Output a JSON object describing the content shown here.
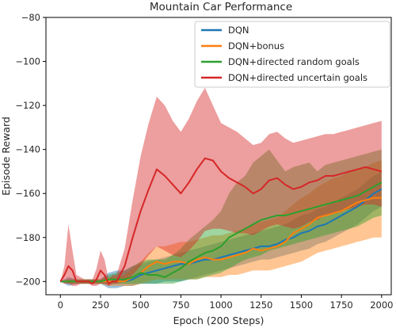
{
  "chart_data": {
    "type": "line",
    "title": "Mountain Car Performance",
    "xlabel": "Epoch (200 Steps)",
    "ylabel": "Episode Reward",
    "xlim": [
      -90,
      2060
    ],
    "ylim": [
      -206,
      -80
    ],
    "xticks": [
      0,
      250,
      500,
      750,
      1000,
      1250,
      1500,
      1750,
      2000
    ],
    "yticks": [
      -80,
      -100,
      -120,
      -140,
      -160,
      -180,
      -200
    ],
    "grid": false,
    "legend_position": "top-right",
    "series": [
      {
        "name": "DQN",
        "color": "#1f77b4",
        "x": [
          0,
          50,
          100,
          150,
          200,
          250,
          300,
          350,
          400,
          450,
          500,
          550,
          600,
          650,
          700,
          750,
          800,
          850,
          900,
          950,
          1000,
          1050,
          1100,
          1150,
          1200,
          1250,
          1300,
          1350,
          1400,
          1450,
          1500,
          1550,
          1600,
          1650,
          1700,
          1750,
          1800,
          1850,
          1900,
          1950,
          2000
        ],
        "mean": [
          -200,
          -200,
          -200,
          -200,
          -200,
          -200,
          -200,
          -200,
          -200,
          -199,
          -197,
          -196,
          -195,
          -194,
          -193,
          -192,
          -192,
          -191,
          -190,
          -190,
          -189,
          -188,
          -187,
          -186,
          -185,
          -184,
          -184,
          -183,
          -181,
          -180,
          -178,
          -177,
          -175,
          -174,
          -172,
          -170,
          -168,
          -166,
          -163,
          -160,
          -158
        ],
        "lower": [
          -200,
          -202,
          -201,
          -201,
          -201,
          -201,
          -203,
          -203,
          -202,
          -202,
          -201,
          -201,
          -201,
          -200,
          -200,
          -200,
          -199,
          -198,
          -197,
          -196,
          -195,
          -194,
          -193,
          -192,
          -191,
          -190,
          -190,
          -189,
          -188,
          -187,
          -186,
          -185,
          -183,
          -182,
          -180,
          -178,
          -176,
          -174,
          -171,
          -168,
          -166
        ],
        "upper": [
          -200,
          -198,
          -199,
          -199,
          -199,
          -199,
          -196,
          -195,
          -195,
          -193,
          -192,
          -191,
          -190,
          -189,
          -188,
          -187,
          -186,
          -185,
          -184,
          -183,
          -182,
          -181,
          -180,
          -179,
          -178,
          -177,
          -176,
          -175,
          -174,
          -172,
          -170,
          -169,
          -167,
          -166,
          -164,
          -162,
          -160,
          -158,
          -155,
          -152,
          -150
        ]
      },
      {
        "name": "DQN+bonus",
        "color": "#ff7f0e",
        "x": [
          0,
          50,
          100,
          150,
          200,
          250,
          300,
          350,
          400,
          450,
          500,
          550,
          600,
          650,
          700,
          750,
          800,
          850,
          900,
          950,
          1000,
          1050,
          1100,
          1150,
          1200,
          1250,
          1300,
          1350,
          1400,
          1450,
          1500,
          1550,
          1600,
          1650,
          1700,
          1750,
          1800,
          1850,
          1900,
          1950,
          2000
        ],
        "mean": [
          -200,
          -200,
          -200,
          -200,
          -200,
          -200,
          -200,
          -200,
          -200,
          -198,
          -196,
          -193,
          -191,
          -192,
          -191,
          -191,
          -192,
          -190,
          -189,
          -190,
          -190,
          -189,
          -188,
          -187,
          -185,
          -186,
          -185,
          -184,
          -182,
          -178,
          -176,
          -174,
          -171,
          -170,
          -169,
          -168,
          -166,
          -164,
          -163,
          -162,
          -162
        ],
        "lower": [
          -200,
          -201,
          -201,
          -201,
          -201,
          -201,
          -202,
          -202,
          -202,
          -202,
          -201,
          -200,
          -199,
          -199,
          -199,
          -199,
          -199,
          -199,
          -198,
          -198,
          -198,
          -197,
          -197,
          -196,
          -195,
          -195,
          -195,
          -194,
          -193,
          -192,
          -191,
          -189,
          -187,
          -186,
          -185,
          -184,
          -183,
          -182,
          -181,
          -180,
          -180
        ],
        "upper": [
          -200,
          -199,
          -199,
          -199,
          -199,
          -199,
          -198,
          -198,
          -197,
          -194,
          -191,
          -187,
          -184,
          -184,
          -183,
          -182,
          -182,
          -181,
          -180,
          -179,
          -179,
          -178,
          -177,
          -176,
          -174,
          -173,
          -172,
          -171,
          -168,
          -165,
          -162,
          -160,
          -157,
          -155,
          -153,
          -152,
          -150,
          -149,
          -148,
          -146,
          -145
        ]
      },
      {
        "name": "DQN+directed random goals",
        "color": "#2ca02c",
        "x": [
          0,
          50,
          100,
          150,
          200,
          250,
          300,
          350,
          400,
          450,
          500,
          550,
          600,
          650,
          700,
          750,
          800,
          850,
          900,
          950,
          1000,
          1050,
          1100,
          1150,
          1200,
          1250,
          1300,
          1350,
          1400,
          1450,
          1500,
          1550,
          1600,
          1650,
          1700,
          1750,
          1800,
          1850,
          1900,
          1950,
          2000
        ],
        "mean": [
          -200,
          -200,
          -200,
          -200,
          -200,
          -200,
          -199,
          -199,
          -199,
          -198,
          -196,
          -197,
          -197,
          -198,
          -196,
          -194,
          -191,
          -189,
          -187,
          -186,
          -184,
          -180,
          -178,
          -176,
          -174,
          -172,
          -171,
          -170,
          -170,
          -169,
          -168,
          -167,
          -166,
          -165,
          -164,
          -163,
          -162,
          -161,
          -159,
          -157,
          -155
        ],
        "lower": [
          -200,
          -201,
          -201,
          -201,
          -201,
          -201,
          -201,
          -201,
          -201,
          -201,
          -201,
          -201,
          -201,
          -201,
          -201,
          -200,
          -199,
          -199,
          -198,
          -197,
          -196,
          -194,
          -192,
          -190,
          -189,
          -188,
          -186,
          -185,
          -184,
          -183,
          -182,
          -181,
          -180,
          -179,
          -178,
          -177,
          -176,
          -175,
          -173,
          -171,
          -170
        ],
        "upper": [
          -200,
          -199,
          -199,
          -199,
          -199,
          -199,
          -197,
          -196,
          -195,
          -193,
          -191,
          -190,
          -190,
          -190,
          -188,
          -185,
          -181,
          -178,
          -175,
          -172,
          -168,
          -160,
          -155,
          -152,
          -146,
          -143,
          -140,
          -145,
          -150,
          -148,
          -147,
          -146,
          -150,
          -147,
          -146,
          -145,
          -144,
          -143,
          -142,
          -141,
          -140
        ]
      },
      {
        "name": "DQN+directed uncertain goals",
        "color": "#d62728",
        "x": [
          0,
          25,
          50,
          75,
          100,
          125,
          150,
          175,
          200,
          225,
          250,
          275,
          300,
          325,
          350,
          400,
          450,
          500,
          550,
          600,
          650,
          700,
          750,
          800,
          850,
          900,
          950,
          1000,
          1050,
          1100,
          1150,
          1200,
          1250,
          1300,
          1350,
          1400,
          1450,
          1500,
          1550,
          1600,
          1650,
          1700,
          1750,
          1800,
          1850,
          1900,
          1950,
          2000
        ],
        "mean": [
          -200,
          -197,
          -193,
          -195,
          -200,
          -200,
          -200,
          -200,
          -201,
          -199,
          -195,
          -197,
          -201,
          -200,
          -200,
          -193,
          -180,
          -168,
          -158,
          -149,
          -152,
          -156,
          -160,
          -155,
          -149,
          -144,
          -145,
          -150,
          -153,
          -155,
          -157,
          -160,
          -158,
          -154,
          -153,
          -156,
          -158,
          -157,
          -155,
          -154,
          -152,
          -152,
          -151,
          -150,
          -149,
          -148,
          -149,
          -150
        ],
        "lower": [
          -200,
          -201,
          -201,
          -202,
          -202,
          -201,
          -201,
          -201,
          -202,
          -202,
          -201,
          -201,
          -202,
          -201,
          -201,
          -200,
          -197,
          -193,
          -188,
          -184,
          -186,
          -188,
          -189,
          -186,
          -182,
          -177,
          -176,
          -176,
          -177,
          -178,
          -178,
          -179,
          -177,
          -175,
          -174,
          -175,
          -176,
          -175,
          -173,
          -172,
          -170,
          -169,
          -168,
          -167,
          -166,
          -165,
          -165,
          -166
        ],
        "upper": [
          -200,
          -193,
          -174,
          -186,
          -197,
          -198,
          -199,
          -199,
          -199,
          -194,
          -186,
          -190,
          -199,
          -197,
          -197,
          -185,
          -163,
          -143,
          -128,
          -116,
          -120,
          -127,
          -132,
          -126,
          -118,
          -112,
          -120,
          -128,
          -130,
          -132,
          -135,
          -138,
          -137,
          -133,
          -132,
          -135,
          -137,
          -136,
          -135,
          -134,
          -133,
          -133,
          -132,
          -131,
          -130,
          -129,
          -128,
          -127
        ]
      }
    ]
  }
}
